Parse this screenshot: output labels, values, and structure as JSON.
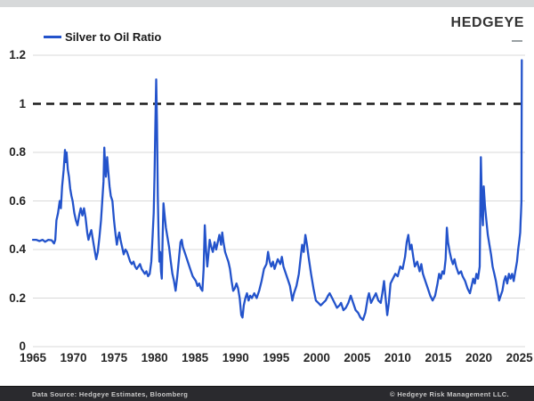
{
  "header": {
    "logo": "HEDGEYE"
  },
  "footer": {
    "source": "Data Source: Hedgeye Estimates, Bloomberg",
    "copyright": "© Hedgeye Risk Management LLC."
  },
  "colors": {
    "line": "#2353cb",
    "grid": "#d9d9d9",
    "reference_line": "#1a1a1a",
    "axis_text": "#262626",
    "topbar": "#d7d9da",
    "footer_bg": "#2a2a2e",
    "footer_text": "#c9c9c9",
    "logo": "#333333"
  },
  "chart_data": {
    "type": "line",
    "title": "Silver to Oil Ratio",
    "xlabel": "",
    "ylabel": "",
    "xlim": [
      1965,
      2026
    ],
    "ylim": [
      0,
      1.2
    ],
    "grid": "horizontal",
    "legend_position": "top-left",
    "reference_line": {
      "y": 1,
      "style": "dashed"
    },
    "x_ticks": [
      1965,
      1970,
      1975,
      1980,
      1985,
      1990,
      1995,
      2000,
      2005,
      2010,
      2015,
      2020,
      2025
    ],
    "y_ticks": {
      "values": [
        0,
        0.2,
        0.4,
        0.6,
        0.8,
        1,
        1.2
      ],
      "labels": [
        "0",
        "0.2",
        "0.4",
        "0.6",
        "0.8",
        "1",
        "1.2"
      ]
    },
    "series": [
      {
        "name": "Silver to Oil Ratio",
        "points": [
          [
            1965.0,
            0.44
          ],
          [
            1965.4,
            0.44
          ],
          [
            1965.8,
            0.435
          ],
          [
            1966.2,
            0.44
          ],
          [
            1966.5,
            0.432
          ],
          [
            1966.9,
            0.44
          ],
          [
            1967.3,
            0.438
          ],
          [
            1967.6,
            0.425
          ],
          [
            1967.75,
            0.44
          ],
          [
            1967.9,
            0.52
          ],
          [
            1968.1,
            0.55
          ],
          [
            1968.3,
            0.6
          ],
          [
            1968.45,
            0.57
          ],
          [
            1968.6,
            0.66
          ],
          [
            1968.8,
            0.73
          ],
          [
            1968.95,
            0.81
          ],
          [
            1969.05,
            0.76
          ],
          [
            1969.15,
            0.8
          ],
          [
            1969.3,
            0.73
          ],
          [
            1969.45,
            0.7
          ],
          [
            1969.6,
            0.65
          ],
          [
            1969.75,
            0.62
          ],
          [
            1969.9,
            0.6
          ],
          [
            1970.1,
            0.55
          ],
          [
            1970.3,
            0.52
          ],
          [
            1970.5,
            0.5
          ],
          [
            1970.7,
            0.54
          ],
          [
            1970.9,
            0.57
          ],
          [
            1971.1,
            0.54
          ],
          [
            1971.3,
            0.57
          ],
          [
            1971.5,
            0.53
          ],
          [
            1971.7,
            0.47
          ],
          [
            1971.85,
            0.44
          ],
          [
            1972.0,
            0.46
          ],
          [
            1972.2,
            0.48
          ],
          [
            1972.4,
            0.44
          ],
          [
            1972.6,
            0.4
          ],
          [
            1972.8,
            0.36
          ],
          [
            1973.0,
            0.39
          ],
          [
            1973.2,
            0.45
          ],
          [
            1973.4,
            0.52
          ],
          [
            1973.55,
            0.6
          ],
          [
            1973.7,
            0.68
          ],
          [
            1973.8,
            0.82
          ],
          [
            1973.9,
            0.75
          ],
          [
            1974.0,
            0.7
          ],
          [
            1974.15,
            0.78
          ],
          [
            1974.3,
            0.72
          ],
          [
            1974.45,
            0.66
          ],
          [
            1974.6,
            0.62
          ],
          [
            1974.8,
            0.6
          ],
          [
            1975.0,
            0.52
          ],
          [
            1975.2,
            0.46
          ],
          [
            1975.35,
            0.42
          ],
          [
            1975.5,
            0.45
          ],
          [
            1975.65,
            0.47
          ],
          [
            1975.8,
            0.44
          ],
          [
            1976.0,
            0.41
          ],
          [
            1976.2,
            0.38
          ],
          [
            1976.4,
            0.4
          ],
          [
            1976.6,
            0.39
          ],
          [
            1976.8,
            0.37
          ],
          [
            1977.0,
            0.35
          ],
          [
            1977.2,
            0.34
          ],
          [
            1977.4,
            0.35
          ],
          [
            1977.6,
            0.33
          ],
          [
            1977.8,
            0.32
          ],
          [
            1978.0,
            0.33
          ],
          [
            1978.2,
            0.34
          ],
          [
            1978.4,
            0.32
          ],
          [
            1978.6,
            0.31
          ],
          [
            1978.8,
            0.3
          ],
          [
            1979.0,
            0.31
          ],
          [
            1979.2,
            0.29
          ],
          [
            1979.4,
            0.3
          ],
          [
            1979.6,
            0.35
          ],
          [
            1979.75,
            0.45
          ],
          [
            1979.9,
            0.55
          ],
          [
            1980.0,
            0.7
          ],
          [
            1980.1,
            0.92
          ],
          [
            1980.2,
            1.1
          ],
          [
            1980.3,
            0.92
          ],
          [
            1980.4,
            0.62
          ],
          [
            1980.5,
            0.46
          ],
          [
            1980.6,
            0.35
          ],
          [
            1980.7,
            0.39
          ],
          [
            1980.8,
            0.31
          ],
          [
            1980.9,
            0.28
          ],
          [
            1981.0,
            0.46
          ],
          [
            1981.1,
            0.59
          ],
          [
            1981.25,
            0.54
          ],
          [
            1981.4,
            0.49
          ],
          [
            1981.6,
            0.45
          ],
          [
            1981.8,
            0.41
          ],
          [
            1982.0,
            0.35
          ],
          [
            1982.2,
            0.3
          ],
          [
            1982.4,
            0.27
          ],
          [
            1982.6,
            0.23
          ],
          [
            1982.8,
            0.29
          ],
          [
            1983.0,
            0.36
          ],
          [
            1983.2,
            0.43
          ],
          [
            1983.35,
            0.44
          ],
          [
            1983.5,
            0.41
          ],
          [
            1983.7,
            0.39
          ],
          [
            1983.9,
            0.37
          ],
          [
            1984.1,
            0.35
          ],
          [
            1984.3,
            0.33
          ],
          [
            1984.5,
            0.31
          ],
          [
            1984.7,
            0.29
          ],
          [
            1984.9,
            0.28
          ],
          [
            1985.1,
            0.27
          ],
          [
            1985.3,
            0.25
          ],
          [
            1985.5,
            0.26
          ],
          [
            1985.7,
            0.24
          ],
          [
            1985.9,
            0.23
          ],
          [
            1986.05,
            0.32
          ],
          [
            1986.2,
            0.5
          ],
          [
            1986.35,
            0.4
          ],
          [
            1986.5,
            0.33
          ],
          [
            1986.65,
            0.38
          ],
          [
            1986.8,
            0.44
          ],
          [
            1987.0,
            0.41
          ],
          [
            1987.2,
            0.39
          ],
          [
            1987.4,
            0.43
          ],
          [
            1987.6,
            0.4
          ],
          [
            1987.8,
            0.43
          ],
          [
            1988.0,
            0.46
          ],
          [
            1988.2,
            0.42
          ],
          [
            1988.35,
            0.47
          ],
          [
            1988.5,
            0.43
          ],
          [
            1988.7,
            0.39
          ],
          [
            1988.9,
            0.37
          ],
          [
            1989.1,
            0.35
          ],
          [
            1989.3,
            0.32
          ],
          [
            1989.5,
            0.27
          ],
          [
            1989.7,
            0.23
          ],
          [
            1989.9,
            0.24
          ],
          [
            1990.1,
            0.26
          ],
          [
            1990.3,
            0.24
          ],
          [
            1990.5,
            0.2
          ],
          [
            1990.7,
            0.13
          ],
          [
            1990.85,
            0.12
          ],
          [
            1991.0,
            0.17
          ],
          [
            1991.2,
            0.2
          ],
          [
            1991.4,
            0.22
          ],
          [
            1991.6,
            0.19
          ],
          [
            1991.8,
            0.21
          ],
          [
            1992.0,
            0.2
          ],
          [
            1992.3,
            0.22
          ],
          [
            1992.6,
            0.2
          ],
          [
            1992.9,
            0.23
          ],
          [
            1993.2,
            0.27
          ],
          [
            1993.5,
            0.32
          ],
          [
            1993.8,
            0.34
          ],
          [
            1994.0,
            0.39
          ],
          [
            1994.2,
            0.35
          ],
          [
            1994.4,
            0.33
          ],
          [
            1994.6,
            0.35
          ],
          [
            1994.8,
            0.32
          ],
          [
            1995.0,
            0.34
          ],
          [
            1995.2,
            0.36
          ],
          [
            1995.5,
            0.34
          ],
          [
            1995.7,
            0.37
          ],
          [
            1995.9,
            0.33
          ],
          [
            1996.1,
            0.31
          ],
          [
            1996.4,
            0.28
          ],
          [
            1996.7,
            0.25
          ],
          [
            1997.0,
            0.19
          ],
          [
            1997.2,
            0.22
          ],
          [
            1997.5,
            0.25
          ],
          [
            1997.8,
            0.3
          ],
          [
            1998.0,
            0.36
          ],
          [
            1998.2,
            0.42
          ],
          [
            1998.4,
            0.39
          ],
          [
            1998.6,
            0.46
          ],
          [
            1998.8,
            0.42
          ],
          [
            1999.0,
            0.37
          ],
          [
            1999.3,
            0.3
          ],
          [
            1999.6,
            0.24
          ],
          [
            1999.9,
            0.19
          ],
          [
            2000.2,
            0.18
          ],
          [
            2000.5,
            0.17
          ],
          [
            2000.8,
            0.18
          ],
          [
            2001.1,
            0.19
          ],
          [
            2001.4,
            0.21
          ],
          [
            2001.6,
            0.22
          ],
          [
            2001.9,
            0.2
          ],
          [
            2002.2,
            0.18
          ],
          [
            2002.5,
            0.16
          ],
          [
            2002.8,
            0.17
          ],
          [
            2003.0,
            0.18
          ],
          [
            2003.3,
            0.15
          ],
          [
            2003.6,
            0.16
          ],
          [
            2003.9,
            0.18
          ],
          [
            2004.2,
            0.21
          ],
          [
            2004.5,
            0.18
          ],
          [
            2004.8,
            0.15
          ],
          [
            2005.1,
            0.14
          ],
          [
            2005.4,
            0.12
          ],
          [
            2005.7,
            0.11
          ],
          [
            2006.0,
            0.14
          ],
          [
            2006.3,
            0.2
          ],
          [
            2006.45,
            0.22
          ],
          [
            2006.7,
            0.18
          ],
          [
            2007.0,
            0.2
          ],
          [
            2007.3,
            0.22
          ],
          [
            2007.6,
            0.19
          ],
          [
            2007.9,
            0.18
          ],
          [
            2008.1,
            0.22
          ],
          [
            2008.3,
            0.27
          ],
          [
            2008.5,
            0.2
          ],
          [
            2008.7,
            0.13
          ],
          [
            2008.9,
            0.18
          ],
          [
            2009.1,
            0.26
          ],
          [
            2009.4,
            0.28
          ],
          [
            2009.7,
            0.3
          ],
          [
            2010.0,
            0.29
          ],
          [
            2010.3,
            0.33
          ],
          [
            2010.6,
            0.32
          ],
          [
            2010.9,
            0.37
          ],
          [
            2011.1,
            0.43
          ],
          [
            2011.3,
            0.46
          ],
          [
            2011.5,
            0.4
          ],
          [
            2011.7,
            0.42
          ],
          [
            2011.9,
            0.37
          ],
          [
            2012.1,
            0.33
          ],
          [
            2012.4,
            0.35
          ],
          [
            2012.7,
            0.31
          ],
          [
            2012.9,
            0.34
          ],
          [
            2013.1,
            0.3
          ],
          [
            2013.4,
            0.27
          ],
          [
            2013.7,
            0.24
          ],
          [
            2014.0,
            0.21
          ],
          [
            2014.3,
            0.19
          ],
          [
            2014.6,
            0.21
          ],
          [
            2014.9,
            0.26
          ],
          [
            2015.1,
            0.3
          ],
          [
            2015.3,
            0.28
          ],
          [
            2015.5,
            0.31
          ],
          [
            2015.7,
            0.3
          ],
          [
            2015.9,
            0.36
          ],
          [
            2016.05,
            0.49
          ],
          [
            2016.2,
            0.43
          ],
          [
            2016.4,
            0.39
          ],
          [
            2016.6,
            0.36
          ],
          [
            2016.8,
            0.34
          ],
          [
            2017.0,
            0.36
          ],
          [
            2017.2,
            0.33
          ],
          [
            2017.5,
            0.3
          ],
          [
            2017.8,
            0.31
          ],
          [
            2018.0,
            0.29
          ],
          [
            2018.3,
            0.27
          ],
          [
            2018.6,
            0.24
          ],
          [
            2018.9,
            0.22
          ],
          [
            2019.1,
            0.25
          ],
          [
            2019.3,
            0.28
          ],
          [
            2019.5,
            0.26
          ],
          [
            2019.7,
            0.3
          ],
          [
            2019.9,
            0.28
          ],
          [
            2020.1,
            0.33
          ],
          [
            2020.25,
            0.78
          ],
          [
            2020.4,
            0.55
          ],
          [
            2020.5,
            0.5
          ],
          [
            2020.6,
            0.66
          ],
          [
            2020.75,
            0.58
          ],
          [
            2020.9,
            0.53
          ],
          [
            2021.1,
            0.46
          ],
          [
            2021.3,
            0.42
          ],
          [
            2021.5,
            0.38
          ],
          [
            2021.7,
            0.33
          ],
          [
            2021.9,
            0.3
          ],
          [
            2022.1,
            0.27
          ],
          [
            2022.3,
            0.23
          ],
          [
            2022.5,
            0.19
          ],
          [
            2022.7,
            0.21
          ],
          [
            2022.9,
            0.23
          ],
          [
            2023.1,
            0.27
          ],
          [
            2023.3,
            0.29
          ],
          [
            2023.5,
            0.26
          ],
          [
            2023.7,
            0.3
          ],
          [
            2023.9,
            0.28
          ],
          [
            2024.1,
            0.3
          ],
          [
            2024.3,
            0.27
          ],
          [
            2024.5,
            0.31
          ],
          [
            2024.7,
            0.35
          ],
          [
            2024.85,
            0.4
          ],
          [
            2025.0,
            0.44
          ],
          [
            2025.1,
            0.47
          ],
          [
            2025.15,
            0.52
          ],
          [
            2025.2,
            0.55
          ],
          [
            2025.25,
            0.6
          ],
          [
            2025.3,
            1.18
          ]
        ]
      }
    ]
  }
}
